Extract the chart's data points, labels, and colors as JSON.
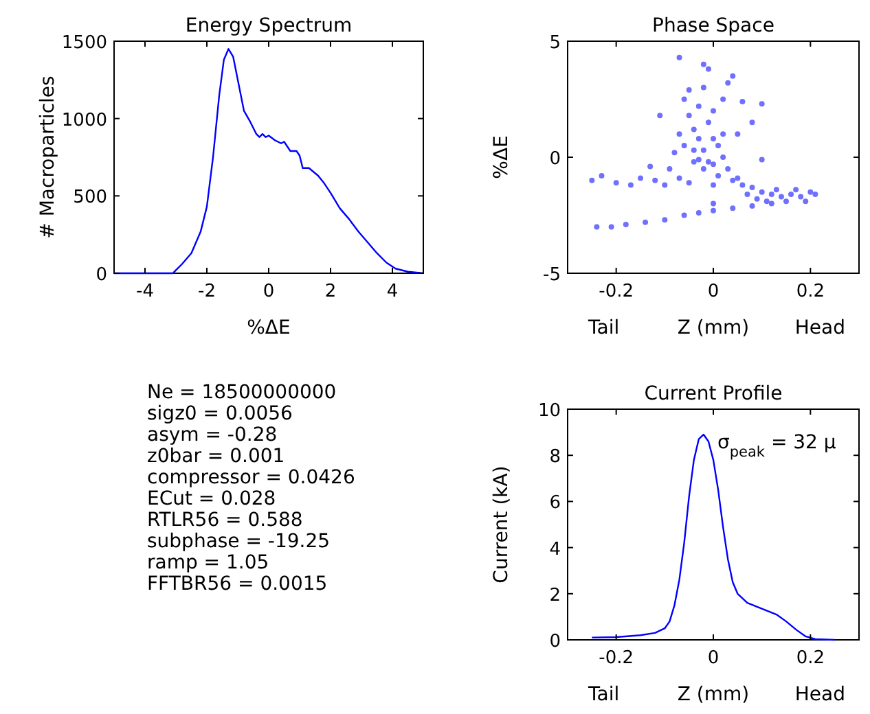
{
  "chart_data": [
    {
      "type": "line",
      "title": "Energy Spectrum",
      "xlabel": "%ΔE",
      "ylabel": "# Macroparticles",
      "xlim": [
        -5,
        5
      ],
      "xticks": [
        -4,
        -2,
        0,
        2,
        4
      ],
      "ylim": [
        0,
        1500
      ],
      "yticks": [
        0,
        500,
        1000,
        1500
      ],
      "series": [
        {
          "color": "#0000ff",
          "x": [
            -5,
            -3.1,
            -2.8,
            -2.5,
            -2.2,
            -2,
            -1.8,
            -1.6,
            -1.45,
            -1.3,
            -1.15,
            -1,
            -0.8,
            -0.6,
            -0.4,
            -0.3,
            -0.2,
            -0.1,
            0,
            0.2,
            0.4,
            0.5,
            0.7,
            0.9,
            1,
            1.1,
            1.3,
            1.6,
            1.8,
            2,
            2.3,
            2.6,
            2.9,
            3.2,
            3.5,
            3.8,
            4.1,
            4.5,
            5
          ],
          "values": [
            0,
            0,
            60,
            130,
            270,
            430,
            750,
            1150,
            1380,
            1450,
            1400,
            1250,
            1050,
            980,
            900,
            880,
            900,
            880,
            890,
            860,
            840,
            850,
            790,
            790,
            760,
            680,
            680,
            630,
            580,
            520,
            420,
            350,
            270,
            200,
            130,
            70,
            30,
            10,
            0
          ]
        }
      ]
    },
    {
      "type": "scatter",
      "title": "Phase Space",
      "xlabel": "Z (mm)",
      "ylabel": "%ΔE",
      "annotations": [
        "Tail",
        "Head"
      ],
      "xlim": [
        -0.3,
        0.3
      ],
      "xticks": [
        -0.2,
        0,
        0.2
      ],
      "ylim": [
        -5,
        5
      ],
      "yticks": [
        -5,
        0,
        5
      ],
      "marker": "circle",
      "series": [
        {
          "color": "#7070ff",
          "x": [
            -0.06,
            -0.05,
            -0.04,
            -0.03,
            -0.02,
            -0.01,
            0,
            -0.02,
            -0.03,
            -0.07,
            -0.06,
            -0.04,
            -0.02,
            0,
            0.01,
            0.02,
            0.01,
            0.03,
            0.02,
            0.03,
            -0.01,
            -0.02,
            0.04,
            -0.05,
            -0.08,
            -0.09,
            -0.07,
            -0.05,
            0,
            0.04,
            0.05,
            0.06,
            0.08,
            0.1,
            0.12,
            0.14,
            0.16,
            0.18,
            0.2,
            0.21,
            0.11,
            0.13,
            0.09,
            0.07,
            0.15,
            0.17,
            0.19,
            0.05,
            0.06,
            0.1,
            0.08,
            -0.03,
            0,
            -0.01,
            -0.04,
            0.02,
            -0.24,
            -0.21,
            -0.18,
            -0.14,
            -0.1,
            -0.06,
            -0.03,
            0,
            0.04,
            0.08,
            0.12,
            -0.25,
            -0.23,
            -0.2,
            -0.17,
            -0.15,
            -0.12,
            -0.1,
            -0.11,
            -0.07,
            0.1,
            0,
            -0.13
          ],
          "values": [
            2.5,
            1.8,
            1.2,
            0.8,
            0.3,
            1.5,
            2,
            3,
            2.2,
            1,
            0.5,
            -0.2,
            -0.5,
            -0.3,
            0.5,
            1,
            -0.8,
            -0.5,
            2.5,
            3.2,
            3.8,
            4,
            3.5,
            2.9,
            0.2,
            -0.5,
            -0.9,
            -1.1,
            -1.2,
            -1,
            -0.9,
            -1.2,
            -1.3,
            -1.5,
            -1.6,
            -1.7,
            -1.6,
            -1.7,
            -1.5,
            -1.6,
            -1.9,
            -1.4,
            -1.8,
            -1.6,
            -1.9,
            -1.4,
            -1.9,
            1,
            2.4,
            2.3,
            1.5,
            -0.1,
            0.8,
            -0.2,
            0.3,
            0,
            -3,
            -3,
            -2.9,
            -2.8,
            -2.7,
            -2.5,
            -2.4,
            -2.3,
            -2.2,
            -2.1,
            -2,
            -1,
            -0.8,
            -1.1,
            -1.2,
            -0.9,
            -1,
            -1.2,
            1.8,
            4.3,
            -0.1,
            -2,
            -0.4
          ]
        }
      ]
    },
    {
      "type": "other",
      "annotations": [
        "Ne = 18500000000",
        "sigz0 = 0.0056",
        "asym = -0.28",
        "z0bar = 0.001",
        "compressor = 0.0426",
        "ECut = 0.028",
        "RTLR56 = 0.588",
        "subphase = -19.25",
        "ramp = 1.05",
        "FFTBR56 = 0.0015"
      ]
    },
    {
      "type": "line",
      "title": "Current Profile",
      "xlabel": "Z (mm)",
      "ylabel": "Current (kA)",
      "annotations": [
        "Tail",
        "Head",
        {
          "text": "σ$_{peak}$ = 32 μ",
          "x": 0,
          "y": 8.3
        }
      ],
      "xlim": [
        -0.3,
        0.3
      ],
      "xticks": [
        -0.2,
        0,
        0.2
      ],
      "ylim": [
        0,
        10
      ],
      "yticks": [
        0,
        2,
        4,
        6,
        8,
        10
      ],
      "series": [
        {
          "color": "#0000ff",
          "x": [
            -0.25,
            -0.2,
            -0.15,
            -0.12,
            -0.1,
            -0.09,
            -0.08,
            -0.07,
            -0.06,
            -0.05,
            -0.04,
            -0.03,
            -0.02,
            -0.01,
            0,
            0.01,
            0.02,
            0.03,
            0.04,
            0.05,
            0.07,
            0.1,
            0.13,
            0.15,
            0.17,
            0.19,
            0.21,
            0.25
          ],
          "values": [
            0.1,
            0.12,
            0.2,
            0.3,
            0.5,
            0.8,
            1.5,
            2.6,
            4.2,
            6.2,
            7.8,
            8.7,
            8.9,
            8.6,
            7.8,
            6.5,
            4.9,
            3.5,
            2.5,
            2,
            1.6,
            1.35,
            1.1,
            0.8,
            0.45,
            0.15,
            0.03,
            0
          ]
        }
      ]
    }
  ]
}
